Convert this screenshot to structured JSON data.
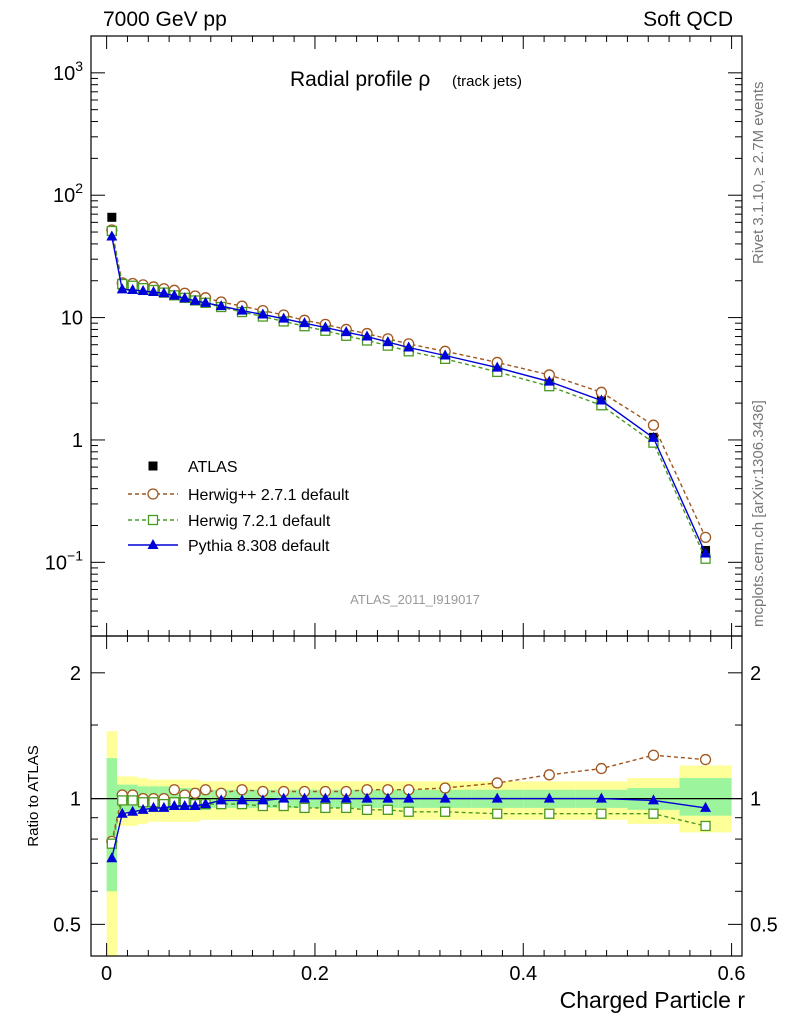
{
  "header": {
    "left": "7000 GeV pp",
    "right": "Soft QCD"
  },
  "side_text": {
    "rivet": "Rivet 3.1.10, ≥ 2.7M events",
    "mcplots": "mcplots.cern.ch [arXiv:1306.3436]"
  },
  "analysis_id": "ATLAS_2011_I919017",
  "chart_data": [
    {
      "type": "line",
      "title_main": "Radial profile ρ",
      "title_sub": "(track jets)",
      "xlabel": "Charged Particle r",
      "ylabel": "",
      "yscale": "log",
      "xlim": [
        -0.015,
        0.61
      ],
      "ylim": [
        0.025,
        2000
      ],
      "yticks_major": [
        {
          "v": 0.1,
          "base": "10",
          "exp": "−1"
        },
        {
          "v": 1,
          "label": "1"
        },
        {
          "v": 10,
          "label": "10"
        },
        {
          "v": 100,
          "base": "10",
          "exp": "2"
        },
        {
          "v": 1000,
          "base": "10",
          "exp": "3"
        }
      ],
      "xticks": [
        0,
        0.2,
        0.4,
        0.6
      ],
      "xtick_labels": [
        "0",
        "0.2",
        "0.4",
        "0.6"
      ],
      "legend_position": "bottom-left",
      "x": [
        0.005,
        0.015,
        0.025,
        0.035,
        0.045,
        0.055,
        0.065,
        0.075,
        0.085,
        0.095,
        0.11,
        0.13,
        0.15,
        0.17,
        0.19,
        0.21,
        0.23,
        0.25,
        0.27,
        0.29,
        0.325,
        0.375,
        0.425,
        0.475,
        0.525,
        0.575
      ],
      "series": [
        {
          "name": "ATLAS",
          "color": "#000000",
          "marker": "filled-square",
          "line": "none",
          "values": [
            66,
            18.5,
            18.0,
            17.5,
            17.0,
            16.5,
            15.5,
            14.8,
            14.2,
            13.6,
            12.6,
            11.5,
            10.7,
            9.8,
            9.0,
            8.3,
            7.6,
            7.0,
            6.3,
            5.7,
            4.9,
            3.9,
            3.0,
            2.1,
            1.05,
            0.125
          ]
        },
        {
          "name": "Herwig++ 2.7.1 default",
          "color": "#a0561e",
          "marker": "open-circle",
          "line": "dashed",
          "values": [
            52,
            19.2,
            19.0,
            18.5,
            17.8,
            17.2,
            16.7,
            15.8,
            15.0,
            14.5,
            13.4,
            12.4,
            11.4,
            10.5,
            9.5,
            8.8,
            8.0,
            7.4,
            6.7,
            6.1,
            5.3,
            4.3,
            3.4,
            2.45,
            1.32,
            0.16
          ]
        },
        {
          "name": "Herwig 7.2.1 default",
          "color": "#4a9a22",
          "marker": "open-square",
          "line": "dashed",
          "values": [
            51,
            18.8,
            18.2,
            17.4,
            16.8,
            16.0,
            15.2,
            14.5,
            13.8,
            13.2,
            12.2,
            11.1,
            10.2,
            9.3,
            8.5,
            7.8,
            7.1,
            6.5,
            5.9,
            5.3,
            4.6,
            3.6,
            2.75,
            1.92,
            0.95,
            0.107
          ]
        },
        {
          "name": "Pythia 8.308 default",
          "color": "#0000d8",
          "marker": "filled-triangle",
          "line": "solid",
          "values": [
            46,
            17.0,
            16.8,
            16.5,
            16.2,
            15.8,
            15.1,
            14.4,
            13.7,
            13.2,
            12.4,
            11.4,
            10.6,
            9.8,
            9.0,
            8.3,
            7.6,
            7.0,
            6.3,
            5.7,
            4.9,
            3.9,
            3.0,
            2.1,
            1.04,
            0.118
          ]
        }
      ]
    },
    {
      "type": "line",
      "xlabel": "Charged Particle r",
      "ylabel": "Ratio to ATLAS",
      "yscale": "log",
      "xlim": [
        -0.015,
        0.61
      ],
      "ylim": [
        0.42,
        2.45
      ],
      "yticks": [
        0.5,
        1,
        2
      ],
      "ytick_labels": [
        "0.5",
        "1",
        "2"
      ],
      "xticks": [
        0,
        0.2,
        0.4,
        0.6
      ],
      "xtick_labels": [
        "0",
        "0.2",
        "0.4",
        "0.6"
      ],
      "bins": [
        [
          0,
          0.01
        ],
        [
          0.01,
          0.02
        ],
        [
          0.02,
          0.03
        ],
        [
          0.03,
          0.04
        ],
        [
          0.04,
          0.05
        ],
        [
          0.05,
          0.06
        ],
        [
          0.06,
          0.07
        ],
        [
          0.07,
          0.08
        ],
        [
          0.08,
          0.09
        ],
        [
          0.09,
          0.1
        ],
        [
          0.1,
          0.12
        ],
        [
          0.12,
          0.14
        ],
        [
          0.14,
          0.16
        ],
        [
          0.16,
          0.18
        ],
        [
          0.18,
          0.2
        ],
        [
          0.2,
          0.22
        ],
        [
          0.22,
          0.24
        ],
        [
          0.24,
          0.26
        ],
        [
          0.26,
          0.28
        ],
        [
          0.28,
          0.3
        ],
        [
          0.3,
          0.35
        ],
        [
          0.35,
          0.4
        ],
        [
          0.4,
          0.45
        ],
        [
          0.45,
          0.5
        ],
        [
          0.5,
          0.55
        ],
        [
          0.55,
          0.6
        ]
      ],
      "band_stat": [
        [
          0.6,
          1.25
        ],
        [
          0.93,
          1.08
        ],
        [
          0.92,
          1.08
        ],
        [
          0.93,
          1.07
        ],
        [
          0.93,
          1.07
        ],
        [
          0.93,
          1.07
        ],
        [
          0.94,
          1.06
        ],
        [
          0.94,
          1.06
        ],
        [
          0.94,
          1.06
        ],
        [
          0.94,
          1.06
        ],
        [
          0.95,
          1.05
        ],
        [
          0.95,
          1.05
        ],
        [
          0.95,
          1.05
        ],
        [
          0.95,
          1.05
        ],
        [
          0.95,
          1.05
        ],
        [
          0.95,
          1.05
        ],
        [
          0.95,
          1.05
        ],
        [
          0.95,
          1.05
        ],
        [
          0.95,
          1.05
        ],
        [
          0.95,
          1.05
        ],
        [
          0.95,
          1.05
        ],
        [
          0.95,
          1.05
        ],
        [
          0.95,
          1.05
        ],
        [
          0.95,
          1.05
        ],
        [
          0.94,
          1.06
        ],
        [
          0.91,
          1.12
        ]
      ],
      "band_total": [
        [
          0.42,
          1.45
        ],
        [
          0.86,
          1.13
        ],
        [
          0.86,
          1.13
        ],
        [
          0.87,
          1.12
        ],
        [
          0.88,
          1.11
        ],
        [
          0.88,
          1.11
        ],
        [
          0.88,
          1.11
        ],
        [
          0.88,
          1.11
        ],
        [
          0.88,
          1.11
        ],
        [
          0.89,
          1.1
        ],
        [
          0.89,
          1.1
        ],
        [
          0.89,
          1.1
        ],
        [
          0.89,
          1.1
        ],
        [
          0.89,
          1.1
        ],
        [
          0.89,
          1.1
        ],
        [
          0.89,
          1.1
        ],
        [
          0.89,
          1.1
        ],
        [
          0.89,
          1.1
        ],
        [
          0.89,
          1.1
        ],
        [
          0.89,
          1.1
        ],
        [
          0.89,
          1.1
        ],
        [
          0.89,
          1.1
        ],
        [
          0.89,
          1.1
        ],
        [
          0.89,
          1.1
        ],
        [
          0.87,
          1.12
        ],
        [
          0.83,
          1.2
        ]
      ],
      "band_colors": {
        "stat": "#9cf59c",
        "total": "#ffff99"
      },
      "x": [
        0.005,
        0.015,
        0.025,
        0.035,
        0.045,
        0.055,
        0.065,
        0.075,
        0.085,
        0.095,
        0.11,
        0.13,
        0.15,
        0.17,
        0.19,
        0.21,
        0.23,
        0.25,
        0.27,
        0.29,
        0.325,
        0.375,
        0.425,
        0.475,
        0.525,
        0.575
      ],
      "series": [
        {
          "name": "Herwig++ 2.7.1 default",
          "color": "#a0561e",
          "marker": "open-circle",
          "line": "dashed",
          "values": [
            0.79,
            1.02,
            1.02,
            1.0,
            1.0,
            1.0,
            1.05,
            1.02,
            1.03,
            1.05,
            1.03,
            1.05,
            1.04,
            1.04,
            1.04,
            1.04,
            1.04,
            1.05,
            1.05,
            1.05,
            1.06,
            1.09,
            1.14,
            1.18,
            1.27,
            1.24
          ]
        },
        {
          "name": "Herwig 7.2.1 default",
          "color": "#4a9a22",
          "marker": "open-square",
          "line": "dashed",
          "values": [
            0.78,
            0.99,
            0.99,
            0.98,
            0.98,
            0.97,
            0.98,
            0.98,
            0.97,
            0.97,
            0.97,
            0.97,
            0.96,
            0.96,
            0.95,
            0.95,
            0.95,
            0.94,
            0.94,
            0.93,
            0.93,
            0.92,
            0.92,
            0.92,
            0.92,
            0.86
          ]
        },
        {
          "name": "Pythia 8.308 default",
          "color": "#0000d8",
          "marker": "filled-triangle",
          "line": "solid",
          "values": [
            0.72,
            0.92,
            0.93,
            0.94,
            0.95,
            0.95,
            0.96,
            0.96,
            0.96,
            0.97,
            0.99,
            0.99,
            0.99,
            1.0,
            1.0,
            1.0,
            1.0,
            1.0,
            1.0,
            1.0,
            1.0,
            1.0,
            1.0,
            1.0,
            0.99,
            0.95
          ]
        }
      ]
    }
  ]
}
